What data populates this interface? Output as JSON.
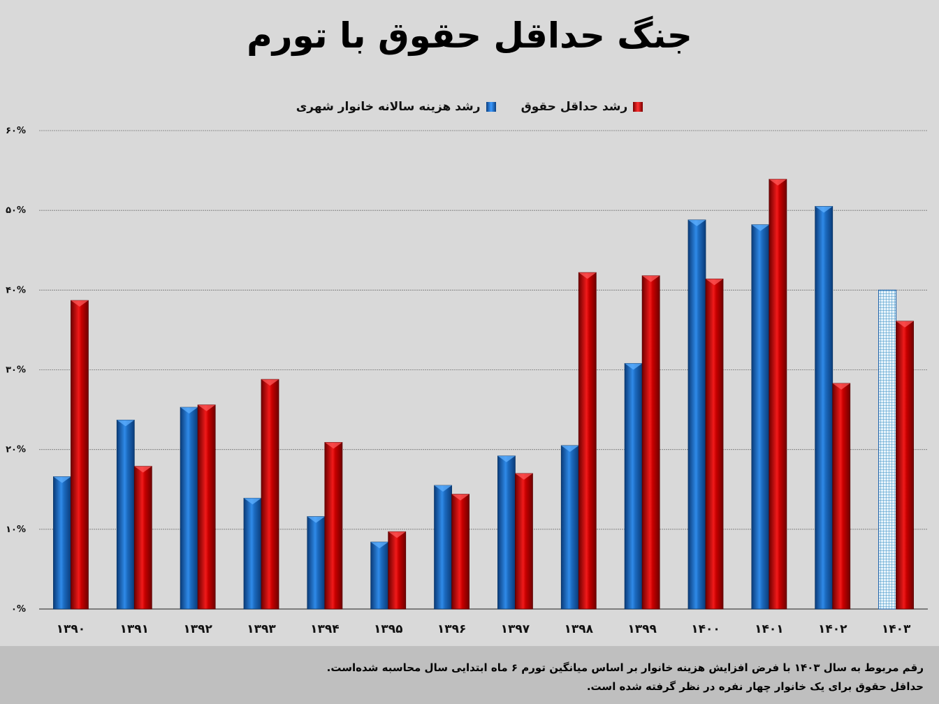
{
  "chart_data": {
    "type": "bar",
    "title": "جنگ حداقل حقوق با تورم",
    "categories": [
      "۱۳۹۰",
      "۱۳۹۱",
      "۱۳۹۲",
      "۱۳۹۳",
      "۱۳۹۴",
      "۱۳۹۵",
      "۱۳۹۶",
      "۱۳۹۷",
      "۱۳۹۸",
      "۱۳۹۹",
      "۱۴۰۰",
      "۱۴۰۱",
      "۱۴۰۲",
      "۱۴۰۳"
    ],
    "series": [
      {
        "name": "رشد هزینه سالانه خانوار شهری",
        "color": "#1f6fc5",
        "values": [
          16.6,
          23.7,
          25.3,
          13.9,
          11.6,
          8.4,
          15.5,
          19.2,
          20.5,
          30.8,
          48.8,
          48.2,
          50.5,
          40.0
        ],
        "estimated": [
          false,
          false,
          false,
          false,
          false,
          false,
          false,
          false,
          false,
          false,
          false,
          false,
          false,
          true
        ]
      },
      {
        "name": "رشد حداقل حقوق",
        "color": "#d00000",
        "values": [
          38.7,
          17.9,
          25.6,
          28.8,
          20.9,
          9.7,
          14.4,
          17.0,
          42.2,
          41.8,
          41.4,
          53.9,
          28.3,
          36.1
        ]
      }
    ],
    "yticks": [
      "۰%",
      "۱۰%",
      "۲۰%",
      "۳۰%",
      "۴۰%",
      "۵۰%",
      "۶۰%"
    ],
    "ylim": [
      0,
      60
    ],
    "grid": true,
    "legend_position": "top"
  },
  "footnote": {
    "line1": "رقم مربوط به سال ۱۴۰۳ با فرض افزایش هزینه خانوار بر اساس میانگین تورم ۶ ماه ابتدایی سال محاسبه شده‌است.",
    "line2": "حداقل حقوق برای یک خانوار چهار نفره در نظر گرفته شده است."
  }
}
